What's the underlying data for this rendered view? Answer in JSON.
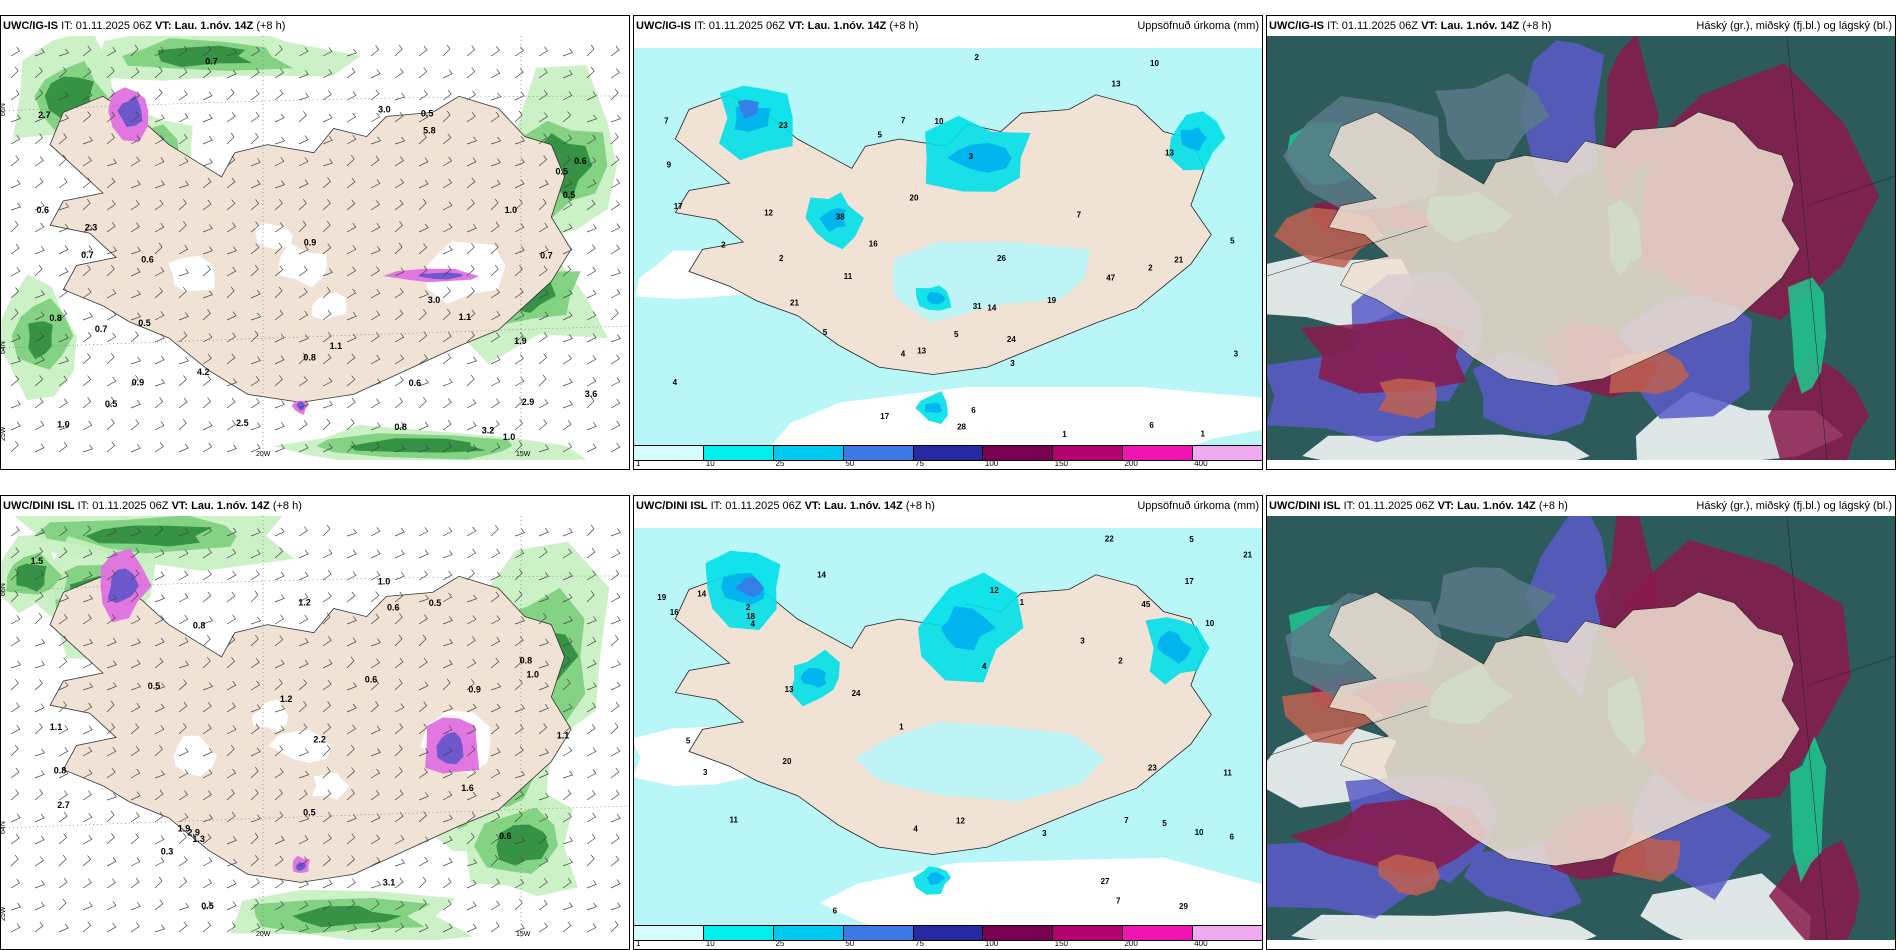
{
  "rows": [
    {
      "model": "UWC/IG-IS",
      "it_label": "IT:",
      "it_value": "01.11.2025 06Z",
      "vt_label": "VT:",
      "vt_value": "Lau. 1.nóv. 14Z",
      "lead": "(+8 h)",
      "panels": [
        {
          "right_title": ""
        },
        {
          "right_title": "Uppsöfnuð úrkoma (mm)"
        },
        {
          "right_title": "Háský (gr.), miðský (fj.bl.) og lágský (bl.)"
        }
      ],
      "wind_labels": [
        "0.5",
        "0.9",
        "2.7",
        "2.3",
        "0.6",
        "0.8",
        "1.0",
        "3.0",
        "0.5",
        "0.6",
        "0.8",
        "0.6",
        "0.5",
        "0.7",
        "3.2",
        "3.6",
        "0.5",
        "1.0",
        "0.7",
        "3.0",
        "4.2",
        "5.8",
        "1.1",
        "2.9",
        "0.8",
        "0.5",
        "0.7",
        "0.9",
        "1.0",
        "0.7",
        "2.5",
        "1.1",
        "1.9",
        "0.6"
      ],
      "precip_labels": [
        "2",
        "6",
        "6",
        "7",
        "5",
        "7",
        "1",
        "47",
        "11",
        "3",
        "17",
        "21",
        "17",
        "28",
        "20",
        "24",
        "31",
        "38",
        "26",
        "13",
        "10",
        "19",
        "14",
        "16",
        "12",
        "21",
        "23",
        "10",
        "13",
        "7",
        "13",
        "3",
        "2",
        "1",
        "2",
        "4",
        "5",
        "9",
        "5",
        "3",
        "4",
        "5",
        "2"
      ]
    },
    {
      "model": "UWC/DINI ISL",
      "it_label": "IT:",
      "it_value": "01.11.2025 06Z",
      "vt_label": "VT:",
      "vt_value": "Lau. 1.nóv. 14Z",
      "lead": "(+8 h)",
      "panels": [
        {
          "right_title": ""
        },
        {
          "right_title": "Uppsöfnuð úrkoma (mm)"
        },
        {
          "right_title": "Háský (gr.), miðský (fj.bl.) og lágský (bl.)"
        }
      ],
      "wind_labels": [
        "1.6",
        "1.0",
        "0.5",
        "0.5",
        "1.1",
        "0.6",
        "0.8",
        "0.5",
        "1.9",
        "0.3",
        "1.5",
        "1.2",
        "1.1",
        "1.2",
        "2.2",
        "2.9",
        "0.8",
        "0.9",
        "3.1",
        "2.7",
        "0.6",
        "0.8",
        "0.6",
        "1.3",
        "1.0",
        "0.5"
      ],
      "precip_labels": [
        "6",
        "2",
        "4",
        "7",
        "5",
        "24",
        "23",
        "14",
        "21",
        "27",
        "18",
        "22",
        "29",
        "16",
        "11",
        "12",
        "13",
        "10",
        "11",
        "14",
        "19",
        "17",
        "10",
        "12",
        "20",
        "3",
        "2",
        "1",
        "5",
        "4",
        "45",
        "3",
        "6",
        "7",
        "5",
        "4",
        "1",
        "3"
      ]
    }
  ],
  "axis_labels": {
    "lat_66": "66N",
    "lat_64": "64N",
    "lon_25": "25W",
    "lon_20": "20W",
    "lon_15": "15W"
  },
  "colorbar": {
    "ticks": [
      "1",
      "10",
      "25",
      "50",
      "75",
      "100",
      "150",
      "200",
      "400"
    ],
    "colors": [
      "#d6fbfb",
      "#00eeee",
      "#00c8f0",
      "#3c78e6",
      "#2828a0",
      "#780050",
      "#b4006e",
      "#f014b4",
      "#f0aaf0"
    ]
  }
}
